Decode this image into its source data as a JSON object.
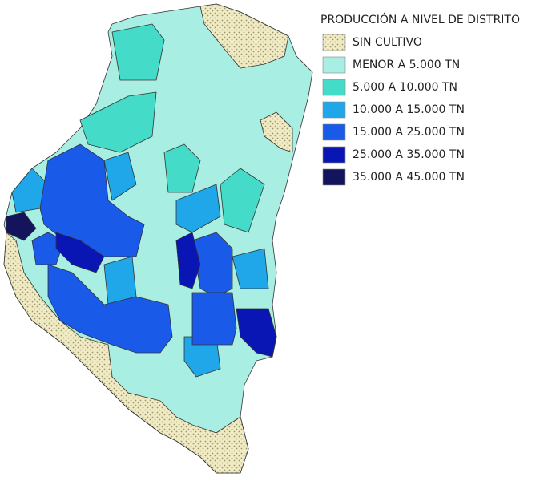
{
  "legend": {
    "title": "PRODUCCIÓN A NIVEL DE DISTRITO",
    "items": [
      {
        "label": "SIN CULTIVO",
        "color": "#f1ebc4",
        "pattern": "dots"
      },
      {
        "label": "MENOR A 5.000 TN",
        "color": "#a8eee2"
      },
      {
        "label": "5.000 A 10.000 TN",
        "color": "#44dcc8"
      },
      {
        "label": "10.000 A 15.000 TN",
        "color": "#1fa7ea"
      },
      {
        "label": "15.000 A 25.000 TN",
        "color": "#1a5ae8"
      },
      {
        "label": "25.000 A 35.000 TN",
        "color": "#0a16b4"
      },
      {
        "label": "35.000 A 45.000 TN",
        "color": "#13145c"
      }
    ]
  }
}
